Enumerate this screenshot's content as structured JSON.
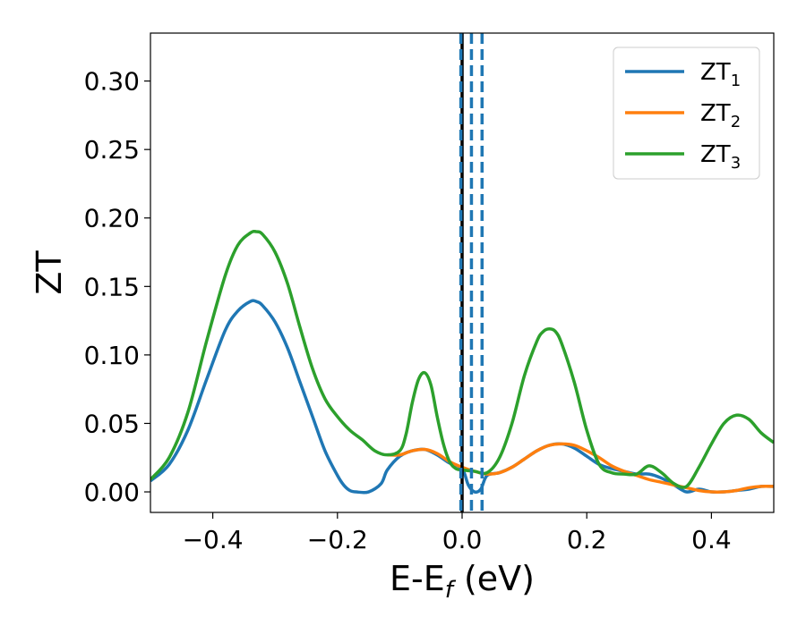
{
  "chart_data": {
    "type": "line",
    "xlabel": "E-E",
    "xlabel_sub": "f",
    "xlabel_unit": " (eV)",
    "ylabel": "ZT",
    "xlim": [
      -0.5,
      0.5
    ],
    "ylim": [
      -0.015,
      0.335
    ],
    "xticks": [
      -0.4,
      -0.2,
      0.0,
      0.2,
      0.4
    ],
    "xtick_labels": [
      "−0.4",
      "−0.2",
      "0.0",
      "0.2",
      "0.4"
    ],
    "yticks": [
      0.0,
      0.05,
      0.1,
      0.15,
      0.2,
      0.25,
      0.3
    ],
    "ytick_labels": [
      "0.00",
      "0.05",
      "0.10",
      "0.15",
      "0.20",
      "0.25",
      "0.30"
    ],
    "grid": false,
    "legend_position": "top-right",
    "colors": {
      "ZT1": "#1f77b4",
      "ZT2": "#ff7f0e",
      "ZT3": "#2ca02c",
      "fermi": "#000000"
    },
    "vertical_lines": [
      {
        "x": 0.0,
        "style": "solid",
        "color": "#000000"
      },
      {
        "x": -0.002,
        "style": "dashed",
        "color": "#1f77b4"
      },
      {
        "x": 0.015,
        "style": "dashed",
        "color": "#1f77b4"
      },
      {
        "x": 0.032,
        "style": "dashed",
        "color": "#1f77b4"
      }
    ],
    "series": [
      {
        "name": "ZT",
        "sub": "1",
        "color": "#1f77b4",
        "x": [
          -0.5,
          -0.47,
          -0.44,
          -0.41,
          -0.38,
          -0.36,
          -0.34,
          -0.33,
          -0.32,
          -0.3,
          -0.28,
          -0.26,
          -0.24,
          -0.22,
          -0.2,
          -0.19,
          -0.18,
          -0.17,
          -0.15,
          -0.13,
          -0.12,
          -0.1,
          -0.08,
          -0.06,
          -0.04,
          -0.02,
          0.0,
          0.01,
          0.02,
          0.03,
          0.04,
          0.06,
          0.08,
          0.1,
          0.12,
          0.14,
          0.16,
          0.18,
          0.2,
          0.22,
          0.24,
          0.26,
          0.28,
          0.3,
          0.32,
          0.34,
          0.36,
          0.38,
          0.4,
          0.42,
          0.44,
          0.46,
          0.48,
          0.5
        ],
        "y": [
          0.008,
          0.02,
          0.045,
          0.082,
          0.118,
          0.132,
          0.139,
          0.139,
          0.136,
          0.124,
          0.105,
          0.08,
          0.055,
          0.03,
          0.012,
          0.005,
          0.001,
          0.0,
          0.0,
          0.006,
          0.016,
          0.026,
          0.03,
          0.031,
          0.027,
          0.021,
          0.017,
          0.005,
          0.0,
          0.002,
          0.012,
          0.014,
          0.018,
          0.024,
          0.03,
          0.034,
          0.035,
          0.032,
          0.026,
          0.02,
          0.017,
          0.015,
          0.013,
          0.013,
          0.01,
          0.005,
          0.0,
          0.002,
          0.0,
          0.0,
          0.001,
          0.002,
          0.004,
          0.004
        ]
      },
      {
        "name": "ZT",
        "sub": "2",
        "color": "#ff7f0e",
        "x": [
          -0.12,
          -0.1,
          -0.08,
          -0.06,
          -0.04,
          -0.02,
          0.0,
          0.02,
          0.04,
          0.06,
          0.08,
          0.1,
          0.12,
          0.14,
          0.16,
          0.18,
          0.2,
          0.22,
          0.24,
          0.26,
          0.28,
          0.3,
          0.32,
          0.34,
          0.36,
          0.38,
          0.4,
          0.42,
          0.44,
          0.46,
          0.48,
          0.5
        ],
        "y": [
          0.027,
          0.027,
          0.03,
          0.031,
          0.028,
          0.022,
          0.018,
          0.015,
          0.013,
          0.014,
          0.018,
          0.024,
          0.03,
          0.034,
          0.035,
          0.034,
          0.03,
          0.025,
          0.019,
          0.015,
          0.012,
          0.009,
          0.007,
          0.005,
          0.003,
          0.001,
          0.0,
          0.0,
          0.001,
          0.003,
          0.004,
          0.004
        ]
      },
      {
        "name": "ZT",
        "sub": "3",
        "color": "#2ca02c",
        "x": [
          -0.5,
          -0.47,
          -0.44,
          -0.41,
          -0.38,
          -0.36,
          -0.34,
          -0.33,
          -0.32,
          -0.3,
          -0.28,
          -0.26,
          -0.24,
          -0.22,
          -0.2,
          -0.18,
          -0.16,
          -0.14,
          -0.12,
          -0.1,
          -0.09,
          -0.08,
          -0.07,
          -0.06,
          -0.05,
          -0.04,
          -0.03,
          -0.02,
          -0.01,
          0.0,
          0.02,
          0.04,
          0.06,
          0.08,
          0.1,
          0.12,
          0.13,
          0.14,
          0.15,
          0.16,
          0.18,
          0.2,
          0.22,
          0.24,
          0.26,
          0.28,
          0.3,
          0.32,
          0.34,
          0.36,
          0.38,
          0.4,
          0.42,
          0.44,
          0.46,
          0.48,
          0.5
        ],
        "y": [
          0.009,
          0.025,
          0.058,
          0.11,
          0.158,
          0.18,
          0.189,
          0.19,
          0.188,
          0.175,
          0.152,
          0.12,
          0.09,
          0.068,
          0.055,
          0.045,
          0.038,
          0.03,
          0.027,
          0.03,
          0.042,
          0.065,
          0.082,
          0.087,
          0.078,
          0.055,
          0.035,
          0.022,
          0.017,
          0.016,
          0.015,
          0.014,
          0.025,
          0.05,
          0.085,
          0.11,
          0.117,
          0.119,
          0.117,
          0.108,
          0.08,
          0.045,
          0.02,
          0.014,
          0.013,
          0.013,
          0.019,
          0.014,
          0.006,
          0.004,
          0.018,
          0.035,
          0.05,
          0.056,
          0.053,
          0.043,
          0.036
        ]
      }
    ]
  }
}
